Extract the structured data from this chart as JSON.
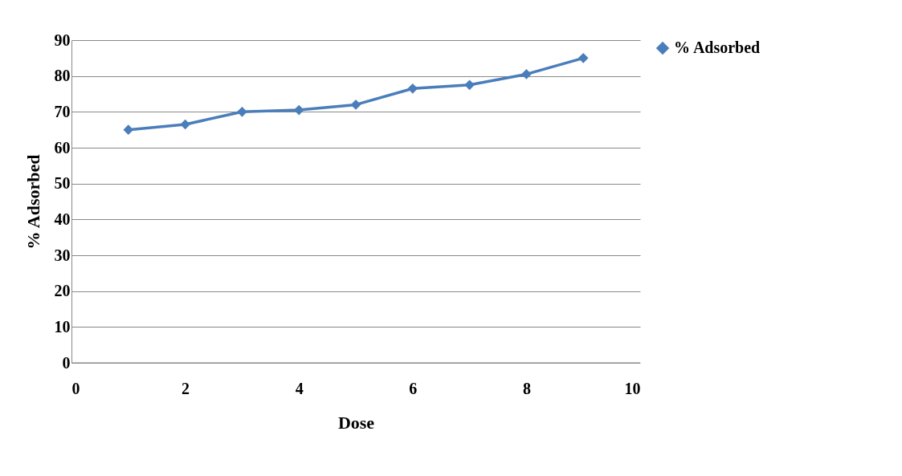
{
  "chart_data": {
    "type": "line",
    "xlabel": "Dose",
    "ylabel": "% Adsorbed",
    "x": [
      1,
      2,
      3,
      4,
      5,
      6,
      7,
      8,
      9
    ],
    "series": [
      {
        "name": "% Adsorbed",
        "color": "#4a7ebb",
        "values": [
          65,
          66.5,
          70,
          70.5,
          72,
          76.5,
          77.5,
          80.5,
          85
        ]
      }
    ],
    "xlim": [
      0,
      10
    ],
    "xticks": [
      0,
      2,
      4,
      6,
      8,
      10
    ],
    "ylim": [
      0,
      90
    ],
    "yticks": [
      0,
      10,
      20,
      30,
      40,
      50,
      60,
      70,
      80,
      90
    ],
    "grid": "y",
    "legend": "right",
    "marker": "diamond",
    "line_style": "solid"
  }
}
